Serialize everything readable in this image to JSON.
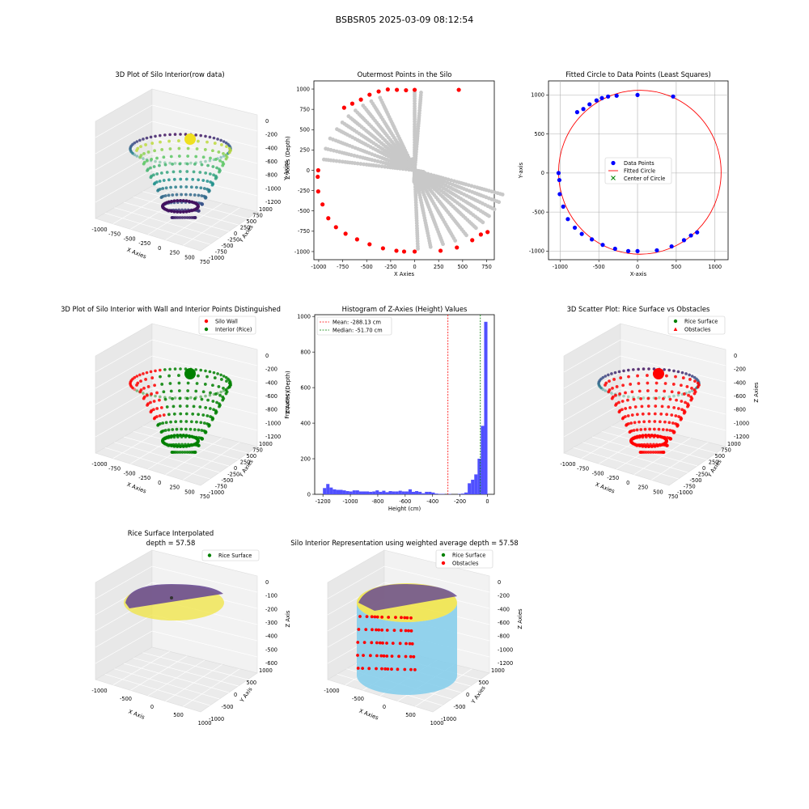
{
  "suptitle": "BSBSR05 2025-03-09 08:12:54",
  "colors": {
    "silo_wall": "#ff0000",
    "rice": "#008000",
    "gray_points": "#c8c8c8",
    "blue_points": "#0000ff",
    "hist_bars": "#5050ff",
    "cylinder": "#87ceeb",
    "surface_yellow": "#f0e442",
    "surface_purple": "#6a4c93"
  },
  "panels": {
    "p1": {
      "title": "3D Plot of Silo Interior(row data)",
      "xlabel": "X Axies",
      "ylabel": "Y Axies",
      "zlabel": "Z Axies (Depth)",
      "xticks": [
        "-1000",
        "-750",
        "-500",
        "-250",
        "0",
        "250",
        "500",
        "750"
      ],
      "yticks": [
        "1000",
        "750",
        "500",
        "250",
        "0",
        "-250",
        "-500",
        "-750",
        "-1000"
      ],
      "zticks": [
        "0",
        "-200",
        "-400",
        "-600",
        "-800",
        "-1000",
        "-1200"
      ]
    },
    "p2": {
      "title": "Outermost Points in the Silo",
      "xlabel": "X Axies",
      "ylabel": "Y Axies",
      "xticks": [
        "-1000",
        "-750",
        "-500",
        "-250",
        "0",
        "250",
        "500",
        "750"
      ],
      "yticks": [
        "1000",
        "750",
        "500",
        "250",
        "0",
        "-250",
        "-500",
        "-750",
        "-1000"
      ]
    },
    "p3": {
      "title": "Fitted Circle to Data Points (Least Squares)",
      "xlabel": "X-axis",
      "ylabel": "Y-axis",
      "xticks": [
        "-1000",
        "-500",
        "0",
        "500",
        "1000"
      ],
      "yticks": [
        "1000",
        "500",
        "0",
        "-500",
        "-1000"
      ],
      "legend": [
        "Data Points",
        "Fitted Circle",
        "Center of Circle"
      ]
    },
    "p4": {
      "title": "3D Plot of Silo Interior with Wall and Interior Points Distinguished",
      "xlabel": "X Axies",
      "ylabel": "Y Axies",
      "zlabel": "Z Axies (Depth)",
      "xticks": [
        "-1000",
        "-750",
        "-500",
        "-250",
        "0",
        "250",
        "500",
        "750"
      ],
      "yticks": [
        "1000",
        "750",
        "500",
        "250",
        "0",
        "-250",
        "-500",
        "-750",
        "-1000"
      ],
      "zticks": [
        "0",
        "-200",
        "-400",
        "-600",
        "-800",
        "-1000",
        "-1200"
      ],
      "legend": [
        "Silo Wall",
        "Interior (Rice)"
      ]
    },
    "p5": {
      "title": "Histogram of Z-Axies (Height) Values",
      "xlabel": "Height (cm)",
      "ylabel": "Frequency",
      "xticks": [
        "-1200",
        "-1000",
        "-800",
        "-600",
        "-400",
        "-200",
        "0"
      ],
      "yticks": [
        "0",
        "200",
        "400",
        "600",
        "800",
        "1000"
      ],
      "legend": [
        "Mean: -288.13 cm",
        "Median: -51.70 cm"
      ]
    },
    "p6": {
      "title": "3D Scatter Plot: Rice Surface vs Obstacles",
      "xlabel": "X Axies",
      "ylabel": "Y Axies",
      "zlabel": "Z Axies",
      "xticks": [
        "-1000",
        "-750",
        "-500",
        "-250",
        "0",
        "250",
        "500",
        "750"
      ],
      "yticks": [
        "1000",
        "750",
        "500",
        "250",
        "0",
        "-250",
        "-500",
        "-750",
        "-1000"
      ],
      "zticks": [
        "0",
        "-200",
        "-400",
        "-600",
        "-800",
        "-1000",
        "-1200"
      ],
      "legend": [
        "Rice Surface",
        "Obstacles"
      ]
    },
    "p7": {
      "title": "Rice Surface Interpolated",
      "title2": "depth = 57.58",
      "xlabel": "X Axis",
      "ylabel": "Y Axis",
      "zlabel": "Z Axis",
      "xticks": [
        "-1000",
        "-500",
        "0",
        "500",
        "1000"
      ],
      "yticks": [
        "1000",
        "500",
        "0",
        "-500",
        "-1000"
      ],
      "zticks": [
        "0",
        "-100",
        "-200",
        "-300",
        "-400",
        "-500",
        "-600"
      ],
      "legend": [
        "Rice Surface"
      ]
    },
    "p8": {
      "title": "Silo Interior Representation using weighted average depth = 57.58",
      "xlabel": "X Axies",
      "ylabel": "Y Axies",
      "zlabel": "Z Axies",
      "xticks": [
        "-1000",
        "-500",
        "0",
        "500",
        "1000"
      ],
      "yticks": [
        "1000",
        "500",
        "0",
        "-500",
        "-1000"
      ],
      "zticks": [
        "0",
        "-200",
        "-400",
        "-600",
        "-800",
        "-1000",
        "-1200"
      ],
      "legend": [
        "Rice Surface",
        "Obstacles"
      ]
    }
  },
  "chart_data": [
    {
      "type": "scatter",
      "title": "Outermost Points in the Silo",
      "xlabel": "X Axies",
      "ylabel": "Y Axies",
      "xlim": [
        -1050,
        830
      ],
      "ylim": [
        -1100,
        1100
      ],
      "series": [
        {
          "name": "",
          "color": "#ff0000",
          "x": [
            0,
            -90,
            -185,
            -280,
            -375,
            -470,
            -560,
            -650,
            -735,
            -1005,
            -1010,
            -1005,
            -960,
            -900,
            -820,
            -720,
            -600,
            -470,
            -330,
            -190,
            -110,
            0,
            270,
            440,
            600,
            690,
            760,
            460
          ],
          "y": [
            990,
            985,
            990,
            995,
            970,
            930,
            870,
            820,
            770,
            0,
            -80,
            -260,
            -420,
            -590,
            -700,
            -780,
            -850,
            -910,
            -960,
            -990,
            -1000,
            -1000,
            -990,
            -950,
            -860,
            -790,
            -760,
            990
          ]
        }
      ]
    },
    {
      "type": "scatter",
      "title": "Fitted Circle to Data Points (Least Squares)",
      "xlabel": "X-axis",
      "ylabel": "Y-axis",
      "xlim": [
        -1150,
        1170
      ],
      "ylim": [
        -1110,
        1180
      ],
      "series": [
        {
          "name": "Data Points",
          "color": "#0000ff",
          "x": [
            0,
            -270,
            -380,
            -460,
            -530,
            -620,
            -700,
            -780,
            -1020,
            -1010,
            -1005,
            -960,
            -900,
            -810,
            -720,
            -590,
            -450,
            -290,
            -120,
            0,
            250,
            440,
            600,
            690,
            770,
            460
          ],
          "y": [
            1000,
            990,
            980,
            960,
            930,
            880,
            820,
            780,
            0,
            -90,
            -270,
            -430,
            -590,
            -700,
            -780,
            -850,
            -920,
            -970,
            -1000,
            -1000,
            -990,
            -940,
            -860,
            -800,
            -760,
            980
          ]
        },
        {
          "name": "Fitted Circle",
          "color": "#ff0000",
          "center": [
            30,
            10
          ],
          "radius": 1050
        },
        {
          "name": "Center of Circle",
          "color": "#008000",
          "x": [
            30
          ],
          "y": [
            10
          ]
        }
      ]
    },
    {
      "type": "bar",
      "title": "Histogram of Z-Axies (Height) Values",
      "xlabel": "Height (cm)",
      "ylabel": "Frequency",
      "xlim": [
        -1260,
        50
      ],
      "ylim": [
        0,
        1010
      ],
      "bin_width": 24,
      "bin_starts": [
        -1200,
        -1176,
        -1152,
        -1128,
        -1104,
        -1080,
        -1056,
        -1032,
        -1008,
        -984,
        -960,
        -936,
        -912,
        -888,
        -864,
        -840,
        -816,
        -792,
        -768,
        -744,
        -720,
        -696,
        -672,
        -648,
        -624,
        -600,
        -576,
        -552,
        -528,
        -504,
        -480,
        -456,
        -432,
        -408,
        -384,
        -360,
        -336,
        -312,
        -288,
        -264,
        -240,
        -216,
        -192,
        -168,
        -144,
        -120,
        -96,
        -72,
        -48,
        -24
      ],
      "values": [
        35,
        58,
        38,
        28,
        25,
        25,
        22,
        18,
        16,
        22,
        22,
        16,
        16,
        16,
        14,
        16,
        22,
        14,
        20,
        12,
        18,
        16,
        16,
        20,
        16,
        16,
        28,
        14,
        18,
        14,
        6,
        14,
        14,
        10,
        4,
        2,
        2,
        0,
        2,
        0,
        0,
        2,
        4,
        10,
        62,
        82,
        112,
        200,
        385,
        970
      ],
      "mean": -288.13,
      "median": -51.7,
      "legend": [
        "Mean: -288.13 cm",
        "Median: -51.70 cm"
      ]
    }
  ]
}
